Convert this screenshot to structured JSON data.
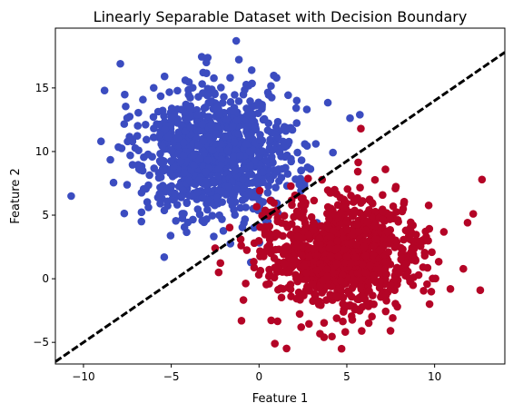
{
  "chart_data": {
    "type": "scatter",
    "title": "Linearly Separable Dataset with Decision Boundary",
    "xlabel": "Feature 1",
    "ylabel": "Feature 2",
    "xlim": [
      -11.6,
      14.0
    ],
    "ylim": [
      -6.7,
      19.7
    ],
    "xticks": [
      -10,
      -5,
      0,
      5,
      10
    ],
    "yticks": [
      -5,
      0,
      5,
      10,
      15
    ],
    "grid": false,
    "legend": "none",
    "colors": {
      "class_0": "#3b4cc0",
      "class_1": "#b40426",
      "boundary": "#000000"
    },
    "series": [
      {
        "class": "class_0",
        "center": [
          -2.5,
          9.8
        ],
        "spread": [
          2.2,
          2.6
        ],
        "count": 1000,
        "outliers": [
          [
            -1.3,
            18.7
          ],
          [
            -7.9,
            16.9
          ],
          [
            -3.0,
            17.0
          ],
          [
            -8.8,
            14.8
          ],
          [
            -10.7,
            6.5
          ],
          [
            -9.0,
            10.8
          ],
          [
            -4.2,
            15.6
          ],
          [
            1.9,
            11.7
          ],
          [
            -6.7,
            4.5
          ],
          [
            -5.4,
            1.7
          ],
          [
            2.3,
            7.4
          ],
          [
            3.3,
            4.4
          ]
        ]
      },
      {
        "class": "class_1",
        "center": [
          4.7,
          2.0
        ],
        "spread": [
          2.2,
          2.2
        ],
        "count": 1000,
        "outliers": [
          [
            12.7,
            7.8
          ],
          [
            12.2,
            5.1
          ],
          [
            12.6,
            -0.9
          ],
          [
            10.9,
            -0.8
          ],
          [
            5.8,
            11.8
          ],
          [
            7.2,
            8.6
          ],
          [
            -1.0,
            -3.3
          ],
          [
            0.9,
            -5.1
          ],
          [
            4.7,
            -5.5
          ],
          [
            3.7,
            -4.6
          ],
          [
            -2.5,
            2.4
          ],
          [
            -2.3,
            0.5
          ]
        ]
      }
    ],
    "decision_boundary": {
      "style": "dashed",
      "slope": 0.95,
      "intercept": 4.5,
      "x_range": [
        -11.6,
        14.0
      ]
    }
  }
}
